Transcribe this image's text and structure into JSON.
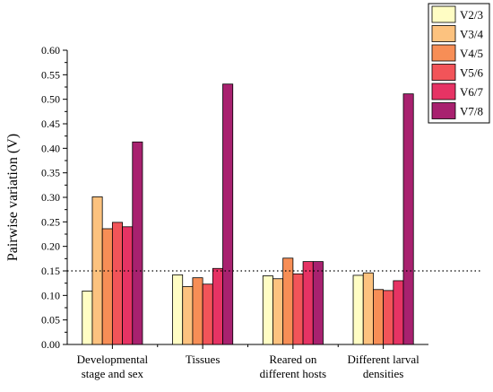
{
  "chart_data": {
    "type": "bar",
    "ylabel": "Pairwise variation (V)",
    "xlabel": "",
    "ylim": [
      0,
      0.6
    ],
    "yticks": [
      "0.00",
      "0.05",
      "0.10",
      "0.15",
      "0.20",
      "0.25",
      "0.30",
      "0.35",
      "0.40",
      "0.45",
      "0.50",
      "0.55",
      "0.60"
    ],
    "categories": [
      "Developmental stage and sex",
      "Tissues",
      "Reared on different hosts",
      "Different larval densities"
    ],
    "category_label_lines": [
      [
        "Developmental",
        "stage and sex"
      ],
      [
        "Tissues"
      ],
      [
        "Reared on",
        "different hosts"
      ],
      [
        "Different larval",
        "densities"
      ]
    ],
    "series": [
      {
        "name": "V2/3",
        "color": "#fffdc4",
        "values": [
          0.109,
          0.142,
          0.14,
          0.141
        ]
      },
      {
        "name": "V3/4",
        "color": "#fcc27f",
        "values": [
          0.301,
          0.118,
          0.134,
          0.146
        ]
      },
      {
        "name": "V4/5",
        "color": "#f78e56",
        "values": [
          0.236,
          0.136,
          0.176,
          0.112
        ]
      },
      {
        "name": "V5/6",
        "color": "#f25459",
        "values": [
          0.249,
          0.123,
          0.144,
          0.11
        ]
      },
      {
        "name": "V6/7",
        "color": "#e63364",
        "values": [
          0.24,
          0.155,
          0.169,
          0.13
        ]
      },
      {
        "name": "V7/8",
        "color": "#a8216f",
        "values": [
          0.413,
          0.531,
          0.169,
          0.511
        ]
      }
    ],
    "threshold": 0.15,
    "threshold_style": "dotted",
    "legend_position": "top-right",
    "grid": false
  }
}
